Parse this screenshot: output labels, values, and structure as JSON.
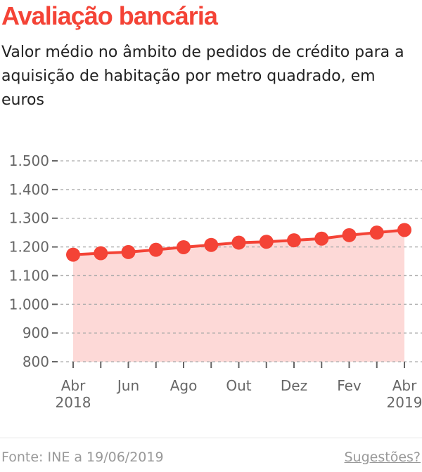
{
  "title": "Avaliação bancária",
  "subtitle": "Valor médio no âmbito de pedidos de crédito para a aquisição de habitação por metro quadrado, em euros",
  "footer": {
    "source": "Fonte: INE a 19/06/2019",
    "suggestions": "Sugestões?"
  },
  "chart_data": {
    "type": "area",
    "x": [
      "Abr 2018",
      "Mai 2018",
      "Jun 2018",
      "Jul 2018",
      "Ago 2018",
      "Set 2018",
      "Out 2018",
      "Nov 2018",
      "Dez 2018",
      "Jan 2019",
      "Fev 2019",
      "Mar 2019",
      "Abr 2019"
    ],
    "values": [
      1173,
      1178,
      1182,
      1190,
      1199,
      1207,
      1215,
      1218,
      1223,
      1229,
      1241,
      1250,
      1259
    ],
    "ylim": [
      800,
      1500
    ],
    "yticks": [
      "800",
      "900",
      "1.000",
      "1.100",
      "1.200",
      "1.300",
      "1.400",
      "1.500"
    ],
    "xtick_labels": [
      {
        "line1": "Abr",
        "line2": "2018"
      },
      {
        "line1": "Jun"
      },
      {
        "line1": "Ago"
      },
      {
        "line1": "Out"
      },
      {
        "line1": "Dez"
      },
      {
        "line1": "Fev"
      },
      {
        "line1": "Abr",
        "line2": "2019"
      }
    ],
    "grid": true,
    "colors": {
      "line": "#f44336",
      "fill": "#fdd9d7"
    }
  }
}
